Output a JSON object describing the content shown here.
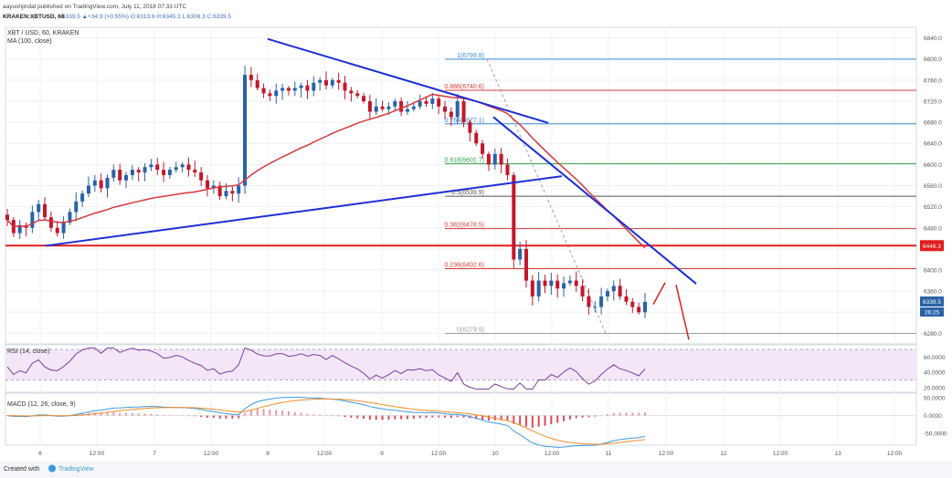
{
  "header": {
    "publisher_line": "aayushjindal published on TradingView.com, July 11, 2018 07:33 UTC",
    "symbol_line": "KRAKEN:XBTUSD, 60",
    "ohlc_text": "6339.5 ▲+34.9 (+0.55%) O:6313.6 H:6345.3 L:6306.3 C:6339.5"
  },
  "legend": {
    "symbol": "XBT / USD, 60, KRAKEN",
    "ma": "MA (100, close)"
  },
  "footer": {
    "created_with": "Created with",
    "brand": "TradingView"
  },
  "colors": {
    "up": "#2962a6",
    "down": "#c2182b",
    "trendline": "#1e2fd6",
    "horizontal": "#e01e1e",
    "ma": "#d9363e",
    "rsi": "#7b3fa0",
    "macd": "#3b9bd9",
    "signal": "#f28c28",
    "grid": "#eef1f5"
  },
  "price_chart": {
    "y_ticks": [
      "6840.0",
      "6800.0",
      "6760.0",
      "6720.0",
      "6680.0",
      "6640.0",
      "6600.0",
      "6560.0",
      "6520.0",
      "6480.0",
      "6440.0",
      "6400.0",
      "6360.0",
      "6320.0",
      "6280.0"
    ],
    "last_price_label": "6339.5",
    "countdown_label": "26:25",
    "horizontal_level_label": "6446.3",
    "fib_labels": [
      "1(6799.8)",
      "0.886(6740.6)",
      "0.764(6677.1)",
      "0.618(6601.7)",
      "0.5(6539.9)",
      "0.382(6478.5)",
      "0.236(6402.6)",
      "0(6279.9)"
    ]
  },
  "rsi_panel": {
    "legend": "RSI (14, close)",
    "y_ticks": [
      "60.0000",
      "40.0000",
      "20.0000"
    ]
  },
  "macd_panel": {
    "legend": "MACD (12, 26, close, 9)",
    "y_ticks": [
      "50.0000",
      "0.0000",
      "-50.0000"
    ]
  },
  "x_axis": {
    "labels": [
      "6",
      "12:00",
      "7",
      "12:00",
      "8",
      "12:00",
      "9",
      "12:00",
      "10",
      "12:00",
      "11",
      "12:00",
      "12",
      "12:00",
      "13",
      "12:00"
    ]
  },
  "chart_data": {
    "type": "candlestick",
    "title": "XBT / USD, 60, KRAKEN",
    "ylim": [
      6260,
      6860
    ],
    "fib_levels": [
      {
        "ratio": "1",
        "price": 6799.8
      },
      {
        "ratio": "0.886",
        "price": 6740.6
      },
      {
        "ratio": "0.764",
        "price": 6677.1
      },
      {
        "ratio": "0.618",
        "price": 6601.7
      },
      {
        "ratio": "0.5",
        "price": 6539.9
      },
      {
        "ratio": "0.382",
        "price": 6478.5
      },
      {
        "ratio": "0.236",
        "price": 6402.6
      },
      {
        "ratio": "0",
        "price": 6279.9
      }
    ],
    "horizontal_level": 6446.3,
    "last_price": 6339.5,
    "closes": [
      6495,
      6470,
      6485,
      6480,
      6510,
      6525,
      6500,
      6480,
      6470,
      6490,
      6510,
      6530,
      6545,
      6560,
      6570,
      6555,
      6575,
      6590,
      6570,
      6580,
      6590,
      6585,
      6595,
      6600,
      6590,
      6580,
      6590,
      6595,
      6600,
      6590,
      6585,
      6570,
      6555,
      6560,
      6540,
      6550,
      6545,
      6560,
      6770,
      6760,
      6745,
      6735,
      6730,
      6740,
      6745,
      6740,
      6745,
      6750,
      6740,
      6755,
      6760,
      6750,
      6760,
      6755,
      6740,
      6735,
      6730,
      6720,
      6700,
      6710,
      6705,
      6710,
      6720,
      6700,
      6705,
      6710,
      6720,
      6715,
      6725,
      6710,
      6700,
      6690,
      6720,
      6680,
      6660,
      6640,
      6620,
      6600,
      6620,
      6600,
      6580,
      6420,
      6440,
      6380,
      6350,
      6380,
      6370,
      6380,
      6365,
      6375,
      6380,
      6370,
      6350,
      6330,
      6330,
      6350,
      6360,
      6370,
      6350,
      6340,
      6330,
      6320,
      6339.5
    ],
    "rsi": {
      "name": "RSI",
      "ylim": [
        15,
        75
      ],
      "band": [
        30,
        70
      ]
    },
    "macd": {
      "name": "MACD",
      "ylim": [
        -80,
        60
      ]
    }
  }
}
